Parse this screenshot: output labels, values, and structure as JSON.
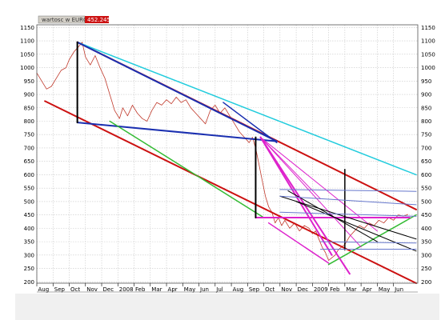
{
  "chart_data": {
    "type": "line",
    "legend": {
      "series_label": "wartosc w EURO",
      "value": "452.2455",
      "placement": "top-left"
    },
    "grid": true,
    "ylim": [
      195,
      1160
    ],
    "y_ticks": [
      200,
      250,
      300,
      350,
      400,
      450,
      500,
      550,
      600,
      650,
      700,
      750,
      800,
      850,
      900,
      950,
      1000,
      1050,
      1100,
      1150
    ],
    "x_range": [
      0,
      23.5
    ],
    "x_ticks": [
      {
        "label": "Aug",
        "x": 0
      },
      {
        "label": "Sep",
        "x": 1
      },
      {
        "label": "Oct",
        "x": 2
      },
      {
        "label": "Nov",
        "x": 3
      },
      {
        "label": "Dec",
        "x": 4
      },
      {
        "label": "2008",
        "x": 5
      },
      {
        "label": "Feb",
        "x": 6
      },
      {
        "label": "Mar",
        "x": 7
      },
      {
        "label": "Apr",
        "x": 8
      },
      {
        "label": "May",
        "x": 9
      },
      {
        "label": "Jun",
        "x": 10
      },
      {
        "label": "Jul",
        "x": 11
      },
      {
        "label": "Aug",
        "x": 12
      },
      {
        "label": "Sep",
        "x": 13
      },
      {
        "label": "Oct",
        "x": 14
      },
      {
        "label": "Nov",
        "x": 15
      },
      {
        "label": "Dec",
        "x": 16
      },
      {
        "label": "2009",
        "x": 17
      },
      {
        "label": "Feb",
        "x": 18
      },
      {
        "label": "Mar",
        "x": 19
      },
      {
        "label": "Apr",
        "x": 20
      },
      {
        "label": "May",
        "x": 21
      },
      {
        "label": "Jun",
        "x": 22
      }
    ],
    "series": [
      {
        "color": "#c0392b",
        "points": [
          [
            0,
            980
          ],
          [
            0.3,
            950
          ],
          [
            0.6,
            920
          ],
          [
            0.9,
            930
          ],
          [
            1.2,
            960
          ],
          [
            1.5,
            990
          ],
          [
            1.8,
            1000
          ],
          [
            2.0,
            1030
          ],
          [
            2.3,
            1060
          ],
          [
            2.6,
            1080
          ],
          [
            2.8,
            1095
          ],
          [
            3.0,
            1040
          ],
          [
            3.3,
            1010
          ],
          [
            3.6,
            1045
          ],
          [
            3.9,
            1000
          ],
          [
            4.2,
            960
          ],
          [
            4.4,
            920
          ],
          [
            4.6,
            880
          ],
          [
            4.8,
            840
          ],
          [
            5.1,
            810
          ],
          [
            5.3,
            850
          ],
          [
            5.6,
            820
          ],
          [
            5.9,
            860
          ],
          [
            6.2,
            830
          ],
          [
            6.5,
            810
          ],
          [
            6.8,
            800
          ],
          [
            7.1,
            840
          ],
          [
            7.4,
            870
          ],
          [
            7.7,
            860
          ],
          [
            8.0,
            880
          ],
          [
            8.3,
            865
          ],
          [
            8.6,
            890
          ],
          [
            8.9,
            870
          ],
          [
            9.2,
            880
          ],
          [
            9.5,
            850
          ],
          [
            9.8,
            830
          ],
          [
            10.1,
            810
          ],
          [
            10.4,
            790
          ],
          [
            10.7,
            840
          ],
          [
            11.0,
            860
          ],
          [
            11.3,
            830
          ],
          [
            11.6,
            850
          ],
          [
            11.9,
            820
          ],
          [
            12.2,
            790
          ],
          [
            12.5,
            760
          ],
          [
            12.8,
            740
          ],
          [
            13.1,
            720
          ],
          [
            13.3,
            740
          ],
          [
            13.5,
            700
          ],
          [
            13.7,
            640
          ],
          [
            13.9,
            580
          ],
          [
            14.1,
            520
          ],
          [
            14.3,
            480
          ],
          [
            14.5,
            460
          ],
          [
            14.7,
            420
          ],
          [
            14.9,
            440
          ],
          [
            15.1,
            410
          ],
          [
            15.3,
            430
          ],
          [
            15.6,
            400
          ],
          [
            15.9,
            420
          ],
          [
            16.2,
            390
          ],
          [
            16.5,
            410
          ],
          [
            16.8,
            400
          ],
          [
            17.0,
            380
          ],
          [
            17.2,
            390
          ],
          [
            17.4,
            360
          ],
          [
            17.6,
            330
          ],
          [
            17.8,
            310
          ],
          [
            18.0,
            280
          ],
          [
            18.2,
            290
          ],
          [
            18.4,
            300
          ],
          [
            18.6,
            320
          ],
          [
            18.8,
            330
          ],
          [
            19.0,
            340
          ],
          [
            19.3,
            370
          ],
          [
            19.6,
            390
          ],
          [
            19.9,
            410
          ],
          [
            20.2,
            400
          ],
          [
            20.5,
            420
          ],
          [
            20.8,
            410
          ],
          [
            21.1,
            430
          ],
          [
            21.4,
            420
          ],
          [
            21.7,
            440
          ],
          [
            22.0,
            430
          ],
          [
            22.3,
            450
          ],
          [
            22.6,
            445
          ],
          [
            22.9,
            452
          ]
        ]
      }
    ],
    "trendlines": [
      {
        "color": "#cc1111",
        "width": 2,
        "from": [
          0.5,
          875
        ],
        "to": [
          23.4,
          195
        ]
      },
      {
        "color": "#cc1111",
        "width": 2,
        "from": [
          2.5,
          1095
        ],
        "to": [
          23.4,
          470
        ]
      },
      {
        "color": "#22ccdd",
        "width": 1.5,
        "from": [
          2.5,
          1095
        ],
        "to": [
          23.4,
          600
        ]
      },
      {
        "color": "#1a2fb0",
        "width": 2,
        "from": [
          2.5,
          1095
        ],
        "to": [
          14.8,
          725
        ]
      },
      {
        "color": "#1a2fb0",
        "width": 2,
        "from": [
          2.5,
          795
        ],
        "to": [
          14.8,
          725
        ]
      },
      {
        "color": "#1a2fb0",
        "width": 1.5,
        "from": [
          11.5,
          870
        ],
        "to": [
          14.8,
          720
        ]
      },
      {
        "color": "#33bb33",
        "width": 1.5,
        "from": [
          4.5,
          800
        ],
        "to": [
          14.0,
          440
        ]
      },
      {
        "color": "#33bb33",
        "width": 1.5,
        "from": [
          18.0,
          265
        ],
        "to": [
          23.4,
          450
        ]
      },
      {
        "color": "#dd22cc",
        "width": 2,
        "from": [
          13.8,
          740
        ],
        "to": [
          19.3,
          230
        ]
      },
      {
        "color": "#dd22cc",
        "width": 2,
        "from": [
          13.8,
          740
        ],
        "to": [
          18.2,
          300
        ]
      },
      {
        "color": "#dd22cc",
        "width": 2,
        "from": [
          13.5,
          440
        ],
        "to": [
          23.0,
          440
        ]
      },
      {
        "color": "#dd22cc",
        "width": 1.5,
        "from": [
          14.3,
          420
        ],
        "to": [
          18.0,
          270
        ]
      },
      {
        "color": "#dd22cc",
        "width": 1,
        "from": [
          13.8,
          740
        ],
        "to": [
          20.0,
          330
        ]
      },
      {
        "color": "#dd22cc",
        "width": 1,
        "from": [
          13.8,
          740
        ],
        "to": [
          21.0,
          390
        ]
      },
      {
        "color": "#dd22cc",
        "width": 1,
        "from": [
          13.8,
          740
        ],
        "to": [
          17.5,
          510
        ]
      },
      {
        "color": "#000000",
        "width": 2,
        "from": [
          2.5,
          1095
        ],
        "to": [
          2.5,
          795
        ]
      },
      {
        "color": "#000000",
        "width": 2,
        "from": [
          13.5,
          740
        ],
        "to": [
          13.5,
          440
        ]
      },
      {
        "color": "#000000",
        "width": 1.5,
        "from": [
          19.0,
          620
        ],
        "to": [
          19.0,
          320
        ]
      },
      {
        "color": "#000000",
        "width": 1,
        "from": [
          16.0,
          500
        ],
        "to": [
          23.4,
          315
        ]
      },
      {
        "color": "#000000",
        "width": 1,
        "from": [
          15.0,
          520
        ],
        "to": [
          23.4,
          360
        ]
      },
      {
        "color": "#000000",
        "width": 1,
        "from": [
          15.5,
          540
        ],
        "to": [
          21.0,
          350
        ]
      },
      {
        "color": "#6677cc",
        "width": 1,
        "from": [
          15.0,
          545
        ],
        "to": [
          23.4,
          538
        ]
      },
      {
        "color": "#6677cc",
        "width": 1,
        "from": [
          15.0,
          520
        ],
        "to": [
          23.4,
          488
        ]
      },
      {
        "color": "#6677cc",
        "width": 1,
        "from": [
          15.0,
          460
        ],
        "to": [
          23.4,
          445
        ]
      },
      {
        "color": "#6677cc",
        "width": 1,
        "from": [
          17.5,
          350
        ],
        "to": [
          23.4,
          345
        ]
      },
      {
        "color": "#6677cc",
        "width": 1,
        "from": [
          17.5,
          322
        ],
        "to": [
          23.4,
          322
        ]
      }
    ]
  }
}
